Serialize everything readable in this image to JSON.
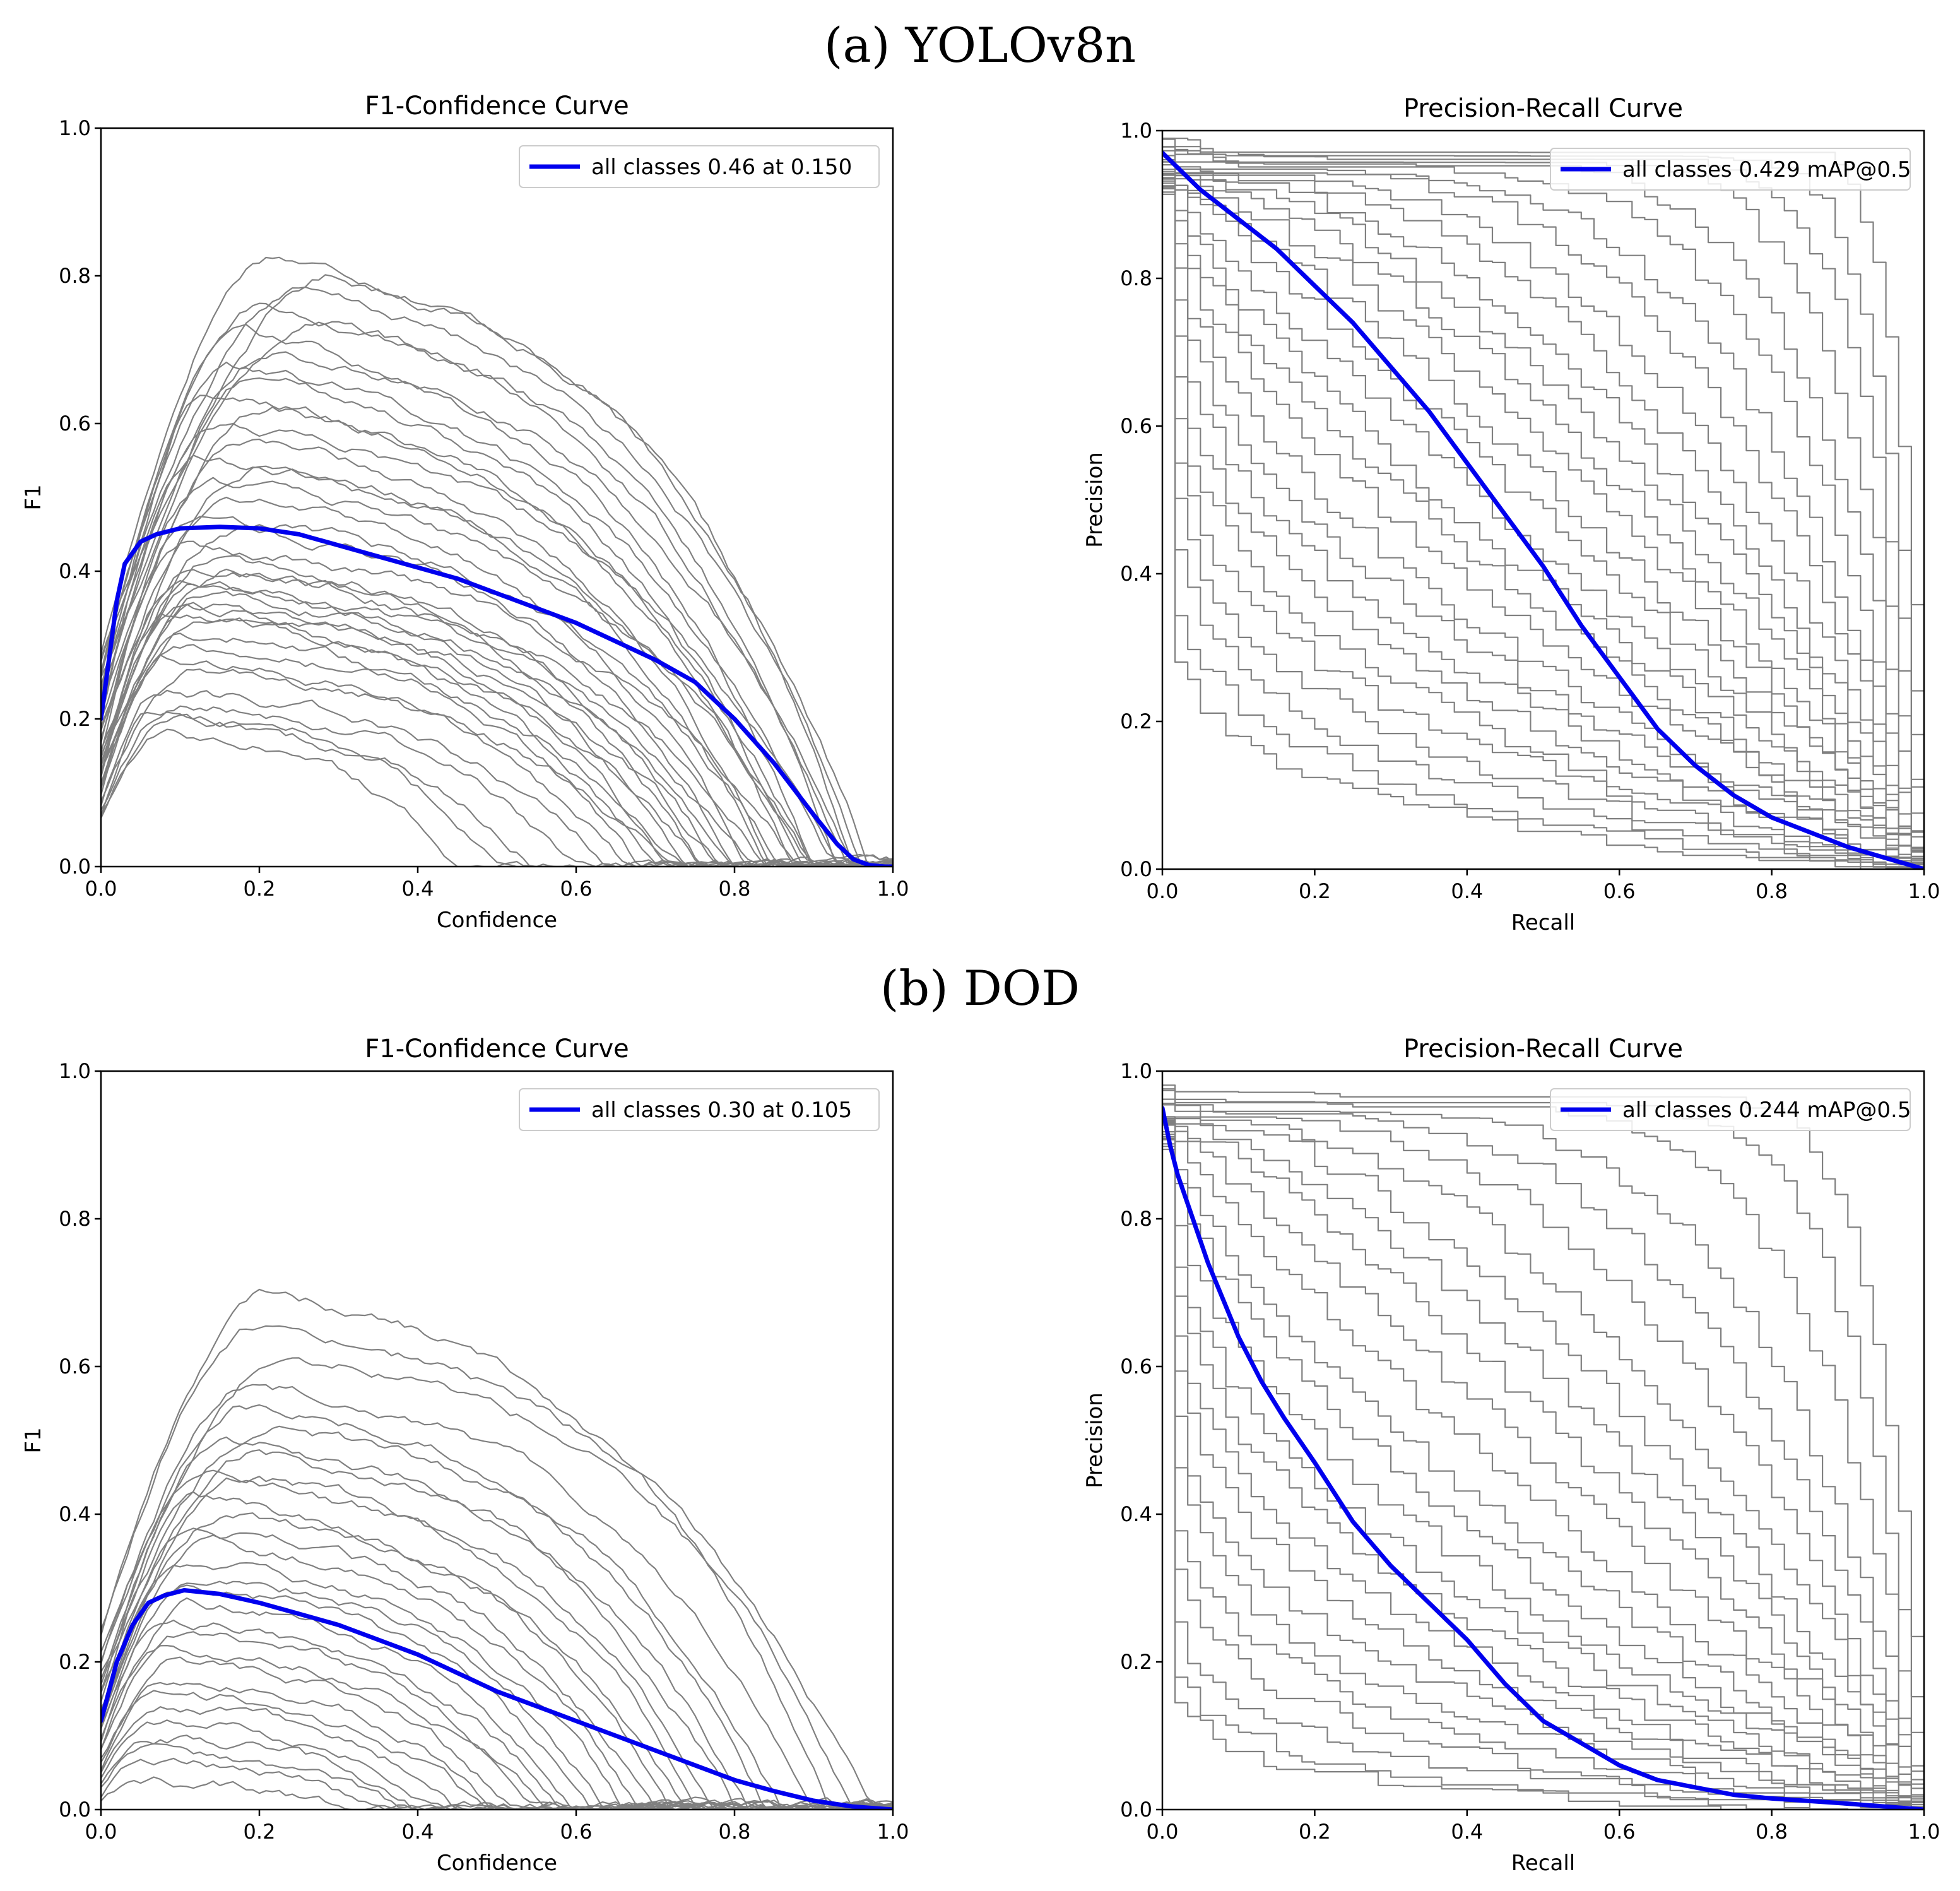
{
  "panels": [
    {
      "label": "(a) YOLOv8n"
    },
    {
      "label": "(b) DOD"
    }
  ],
  "chart_data": [
    {
      "type": "line",
      "panel": "(a) YOLOv8n",
      "title": "F1-Confidence Curve",
      "xlabel": "Confidence",
      "ylabel": "F1",
      "xlim": [
        0,
        1
      ],
      "ylim": [
        0,
        1
      ],
      "xticks": [
        "0.0",
        "0.2",
        "0.4",
        "0.6",
        "0.8",
        "1.0"
      ],
      "yticks": [
        "0.0",
        "0.2",
        "0.4",
        "0.6",
        "0.8",
        "1.0"
      ],
      "legend": {
        "label": "all classes 0.46 at 0.150",
        "color": "#0000ee",
        "position": "top-right"
      },
      "series": [
        {
          "name": "all classes",
          "color": "#0000ee",
          "x": [
            0,
            0.01,
            0.02,
            0.03,
            0.05,
            0.07,
            0.1,
            0.15,
            0.2,
            0.25,
            0.3,
            0.35,
            0.4,
            0.45,
            0.5,
            0.55,
            0.6,
            0.65,
            0.7,
            0.75,
            0.8,
            0.85,
            0.9,
            0.93,
            0.95,
            0.97,
            0.99,
            1.0
          ],
          "y": [
            0.2,
            0.28,
            0.36,
            0.41,
            0.44,
            0.45,
            0.458,
            0.46,
            0.458,
            0.45,
            0.435,
            0.42,
            0.405,
            0.39,
            0.37,
            0.35,
            0.33,
            0.305,
            0.28,
            0.25,
            0.2,
            0.14,
            0.07,
            0.03,
            0.01,
            0.002,
            0.0,
            0.0
          ]
        }
      ],
      "class_curves": [
        {
          "peak": 0.83,
          "peak_at": 0.22,
          "drop": 0.97
        },
        {
          "peak": 0.8,
          "peak_at": 0.3,
          "drop": 0.95
        },
        {
          "peak": 0.78,
          "peak_at": 0.25,
          "drop": 0.96
        },
        {
          "peak": 0.76,
          "peak_at": 0.2,
          "drop": 0.94
        },
        {
          "peak": 0.74,
          "peak_at": 0.28,
          "drop": 0.93
        },
        {
          "peak": 0.72,
          "peak_at": 0.18,
          "drop": 0.95
        },
        {
          "peak": 0.7,
          "peak_at": 0.22,
          "drop": 0.9
        },
        {
          "peak": 0.68,
          "peak_at": 0.16,
          "drop": 0.92
        },
        {
          "peak": 0.66,
          "peak_at": 0.2,
          "drop": 0.88
        },
        {
          "peak": 0.64,
          "peak_at": 0.14,
          "drop": 0.9
        },
        {
          "peak": 0.62,
          "peak_at": 0.22,
          "drop": 0.87
        },
        {
          "peak": 0.6,
          "peak_at": 0.15,
          "drop": 0.93
        },
        {
          "peak": 0.58,
          "peak_at": 0.18,
          "drop": 0.85
        },
        {
          "peak": 0.56,
          "peak_at": 0.12,
          "drop": 0.89
        },
        {
          "peak": 0.54,
          "peak_at": 0.2,
          "drop": 0.84
        },
        {
          "peak": 0.52,
          "peak_at": 0.14,
          "drop": 0.9
        },
        {
          "peak": 0.5,
          "peak_at": 0.16,
          "drop": 0.82
        },
        {
          "peak": 0.48,
          "peak_at": 0.12,
          "drop": 0.86
        },
        {
          "peak": 0.46,
          "peak_at": 0.18,
          "drop": 0.8
        },
        {
          "peak": 0.44,
          "peak_at": 0.1,
          "drop": 0.88
        },
        {
          "peak": 0.42,
          "peak_at": 0.14,
          "drop": 0.78
        },
        {
          "peak": 0.41,
          "peak_at": 0.12,
          "drop": 0.84
        },
        {
          "peak": 0.4,
          "peak_at": 0.16,
          "drop": 0.76
        },
        {
          "peak": 0.39,
          "peak_at": 0.1,
          "drop": 0.82
        },
        {
          "peak": 0.38,
          "peak_at": 0.12,
          "drop": 0.74
        },
        {
          "peak": 0.37,
          "peak_at": 0.14,
          "drop": 0.8
        },
        {
          "peak": 0.36,
          "peak_at": 0.1,
          "drop": 0.72
        },
        {
          "peak": 0.35,
          "peak_at": 0.12,
          "drop": 0.78
        },
        {
          "peak": 0.34,
          "peak_at": 0.08,
          "drop": 0.7
        },
        {
          "peak": 0.33,
          "peak_at": 0.12,
          "drop": 0.76
        },
        {
          "peak": 0.32,
          "peak_at": 0.1,
          "drop": 0.68
        },
        {
          "peak": 0.3,
          "peak_at": 0.1,
          "drop": 0.74
        },
        {
          "peak": 0.28,
          "peak_at": 0.08,
          "drop": 0.66
        },
        {
          "peak": 0.26,
          "peak_at": 0.12,
          "drop": 0.72
        },
        {
          "peak": 0.24,
          "peak_at": 0.08,
          "drop": 0.64
        },
        {
          "peak": 0.22,
          "peak_at": 0.1,
          "drop": 0.6
        },
        {
          "peak": 0.21,
          "peak_at": 0.06,
          "drop": 0.55
        },
        {
          "peak": 0.2,
          "peak_at": 0.1,
          "drop": 0.5
        },
        {
          "peak": 0.18,
          "peak_at": 0.08,
          "drop": 0.45
        }
      ]
    },
    {
      "type": "line",
      "panel": "(a) YOLOv8n",
      "title": "Precision-Recall Curve",
      "xlabel": "Recall",
      "ylabel": "Precision",
      "xlim": [
        0,
        1
      ],
      "ylim": [
        0,
        1
      ],
      "xticks": [
        "0.0",
        "0.2",
        "0.4",
        "0.6",
        "0.8",
        "1.0"
      ],
      "yticks": [
        "0.0",
        "0.2",
        "0.4",
        "0.6",
        "0.8",
        "1.0"
      ],
      "legend": {
        "label": "all classes 0.429 mAP@0.5",
        "color": "#0000ee",
        "position": "top-right"
      },
      "series": [
        {
          "name": "all classes",
          "color": "#0000ee",
          "x": [
            0,
            0.02,
            0.05,
            0.1,
            0.15,
            0.2,
            0.25,
            0.3,
            0.35,
            0.4,
            0.45,
            0.5,
            0.55,
            0.6,
            0.65,
            0.7,
            0.75,
            0.8,
            0.85,
            0.9,
            0.95,
            1.0
          ],
          "y": [
            0.97,
            0.95,
            0.92,
            0.88,
            0.84,
            0.79,
            0.74,
            0.68,
            0.62,
            0.55,
            0.48,
            0.41,
            0.33,
            0.26,
            0.19,
            0.14,
            0.1,
            0.07,
            0.05,
            0.03,
            0.015,
            0.0
          ]
        }
      ],
      "class_curves": [
        {
          "ap": 0.85,
          "shape": 5
        },
        {
          "ap": 0.8,
          "shape": 4.5
        },
        {
          "ap": 0.76,
          "shape": 4
        },
        {
          "ap": 0.72,
          "shape": 3.6
        },
        {
          "ap": 0.68,
          "shape": 3.2
        },
        {
          "ap": 0.64,
          "shape": 3
        },
        {
          "ap": 0.6,
          "shape": 2.8
        },
        {
          "ap": 0.57,
          "shape": 2.6
        },
        {
          "ap": 0.54,
          "shape": 2.4
        },
        {
          "ap": 0.51,
          "shape": 2.3
        },
        {
          "ap": 0.48,
          "shape": 2.2
        },
        {
          "ap": 0.46,
          "shape": 2.1
        },
        {
          "ap": 0.44,
          "shape": 2
        },
        {
          "ap": 0.42,
          "shape": 1.9
        },
        {
          "ap": 0.4,
          "shape": 1.8
        },
        {
          "ap": 0.38,
          "shape": 1.7
        },
        {
          "ap": 0.36,
          "shape": 1.6
        },
        {
          "ap": 0.34,
          "shape": 1.5
        },
        {
          "ap": 0.32,
          "shape": 1.45
        },
        {
          "ap": 0.3,
          "shape": 1.4
        },
        {
          "ap": 0.28,
          "shape": 1.3
        },
        {
          "ap": 0.26,
          "shape": 1.25
        },
        {
          "ap": 0.24,
          "shape": 1.2
        },
        {
          "ap": 0.22,
          "shape": 1.15
        },
        {
          "ap": 0.2,
          "shape": 1.1
        },
        {
          "ap": 0.18,
          "shape": 1.05
        },
        {
          "ap": 0.16,
          "shape": 1
        },
        {
          "ap": 0.14,
          "shape": 0.95
        },
        {
          "ap": 0.12,
          "shape": 0.9
        },
        {
          "ap": 0.1,
          "shape": 0.85
        }
      ]
    },
    {
      "type": "line",
      "panel": "(b) DOD",
      "title": "F1-Confidence Curve",
      "xlabel": "Confidence",
      "ylabel": "F1",
      "xlim": [
        0,
        1
      ],
      "ylim": [
        0,
        1
      ],
      "xticks": [
        "0.0",
        "0.2",
        "0.4",
        "0.6",
        "0.8",
        "1.0"
      ],
      "yticks": [
        "0.0",
        "0.2",
        "0.4",
        "0.6",
        "0.8",
        "1.0"
      ],
      "legend": {
        "label": "all classes 0.30 at 0.105",
        "color": "#0000ee",
        "position": "top-right"
      },
      "series": [
        {
          "name": "all classes",
          "color": "#0000ee",
          "x": [
            0,
            0.01,
            0.02,
            0.04,
            0.06,
            0.08,
            0.105,
            0.15,
            0.2,
            0.25,
            0.3,
            0.35,
            0.4,
            0.45,
            0.5,
            0.55,
            0.6,
            0.65,
            0.7,
            0.75,
            0.8,
            0.85,
            0.9,
            0.95,
            1.0
          ],
          "y": [
            0.12,
            0.16,
            0.2,
            0.25,
            0.28,
            0.29,
            0.297,
            0.292,
            0.28,
            0.265,
            0.25,
            0.23,
            0.21,
            0.185,
            0.16,
            0.14,
            0.12,
            0.1,
            0.08,
            0.06,
            0.04,
            0.025,
            0.012,
            0.004,
            0.0
          ]
        }
      ],
      "class_curves": [
        {
          "peak": 0.7,
          "peak_at": 0.22,
          "drop": 0.92
        },
        {
          "peak": 0.66,
          "peak_at": 0.2,
          "drop": 0.97
        },
        {
          "peak": 0.62,
          "peak_at": 0.25,
          "drop": 0.95
        },
        {
          "peak": 0.58,
          "peak_at": 0.2,
          "drop": 0.9
        },
        {
          "peak": 0.55,
          "peak_at": 0.18,
          "drop": 0.86
        },
        {
          "peak": 0.52,
          "peak_at": 0.22,
          "drop": 0.84
        },
        {
          "peak": 0.5,
          "peak_at": 0.16,
          "drop": 0.82
        },
        {
          "peak": 0.48,
          "peak_at": 0.2,
          "drop": 0.8
        },
        {
          "peak": 0.46,
          "peak_at": 0.14,
          "drop": 0.78
        },
        {
          "peak": 0.44,
          "peak_at": 0.18,
          "drop": 0.76
        },
        {
          "peak": 0.42,
          "peak_at": 0.12,
          "drop": 0.74
        },
        {
          "peak": 0.4,
          "peak_at": 0.16,
          "drop": 0.72
        },
        {
          "peak": 0.38,
          "peak_at": 0.12,
          "drop": 0.7
        },
        {
          "peak": 0.36,
          "peak_at": 0.14,
          "drop": 0.68
        },
        {
          "peak": 0.34,
          "peak_at": 0.1,
          "drop": 0.66
        },
        {
          "peak": 0.32,
          "peak_at": 0.12,
          "drop": 0.64
        },
        {
          "peak": 0.3,
          "peak_at": 0.1,
          "drop": 0.62
        },
        {
          "peak": 0.28,
          "peak_at": 0.12,
          "drop": 0.6
        },
        {
          "peak": 0.26,
          "peak_at": 0.08,
          "drop": 0.58
        },
        {
          "peak": 0.24,
          "peak_at": 0.1,
          "drop": 0.56
        },
        {
          "peak": 0.22,
          "peak_at": 0.08,
          "drop": 0.54
        },
        {
          "peak": 0.2,
          "peak_at": 0.1,
          "drop": 0.52
        },
        {
          "peak": 0.18,
          "peak_at": 0.08,
          "drop": 0.5
        },
        {
          "peak": 0.16,
          "peak_at": 0.06,
          "drop": 0.48
        },
        {
          "peak": 0.14,
          "peak_at": 0.08,
          "drop": 0.45
        },
        {
          "peak": 0.12,
          "peak_at": 0.06,
          "drop": 0.42
        },
        {
          "peak": 0.1,
          "peak_at": 0.06,
          "drop": 0.4
        },
        {
          "peak": 0.08,
          "peak_at": 0.05,
          "drop": 0.38
        },
        {
          "peak": 0.06,
          "peak_at": 0.05,
          "drop": 0.35
        },
        {
          "peak": 0.04,
          "peak_at": 0.04,
          "drop": 0.3
        }
      ]
    },
    {
      "type": "line",
      "panel": "(b) DOD",
      "title": "Precision-Recall Curve",
      "xlabel": "Recall",
      "ylabel": "Precision",
      "xlim": [
        0,
        1
      ],
      "ylim": [
        0,
        1
      ],
      "xticks": [
        "0.0",
        "0.2",
        "0.4",
        "0.6",
        "0.8",
        "1.0"
      ],
      "yticks": [
        "0.0",
        "0.2",
        "0.4",
        "0.6",
        "0.8",
        "1.0"
      ],
      "legend": {
        "label": "all classes 0.244 mAP@0.5",
        "color": "#0000ee",
        "position": "top-right"
      },
      "series": [
        {
          "name": "all classes",
          "color": "#0000ee",
          "x": [
            0,
            0.01,
            0.02,
            0.04,
            0.06,
            0.08,
            0.1,
            0.13,
            0.16,
            0.2,
            0.25,
            0.3,
            0.35,
            0.4,
            0.45,
            0.5,
            0.55,
            0.6,
            0.65,
            0.7,
            0.75,
            0.8,
            0.9,
            1.0
          ],
          "y": [
            0.95,
            0.9,
            0.86,
            0.8,
            0.74,
            0.69,
            0.64,
            0.58,
            0.53,
            0.47,
            0.39,
            0.33,
            0.28,
            0.23,
            0.17,
            0.12,
            0.09,
            0.06,
            0.04,
            0.03,
            0.02,
            0.015,
            0.008,
            0.0
          ]
        }
      ],
      "class_curves": [
        {
          "ap": 0.78,
          "shape": 4.5
        },
        {
          "ap": 0.72,
          "shape": 4
        },
        {
          "ap": 0.66,
          "shape": 3.5
        },
        {
          "ap": 0.6,
          "shape": 3
        },
        {
          "ap": 0.56,
          "shape": 2.7
        },
        {
          "ap": 0.52,
          "shape": 2.5
        },
        {
          "ap": 0.48,
          "shape": 2.3
        },
        {
          "ap": 0.45,
          "shape": 2.1
        },
        {
          "ap": 0.42,
          "shape": 2
        },
        {
          "ap": 0.39,
          "shape": 1.9
        },
        {
          "ap": 0.36,
          "shape": 1.8
        },
        {
          "ap": 0.33,
          "shape": 1.7
        },
        {
          "ap": 0.3,
          "shape": 1.6
        },
        {
          "ap": 0.28,
          "shape": 1.5
        },
        {
          "ap": 0.26,
          "shape": 1.4
        },
        {
          "ap": 0.24,
          "shape": 1.3
        },
        {
          "ap": 0.22,
          "shape": 1.25
        },
        {
          "ap": 0.2,
          "shape": 1.2
        },
        {
          "ap": 0.18,
          "shape": 1.15
        },
        {
          "ap": 0.16,
          "shape": 1.1
        },
        {
          "ap": 0.14,
          "shape": 1.05
        },
        {
          "ap": 0.12,
          "shape": 1
        },
        {
          "ap": 0.1,
          "shape": 0.95
        },
        {
          "ap": 0.08,
          "shape": 0.9
        },
        {
          "ap": 0.06,
          "shape": 0.85
        },
        {
          "ap": 0.05,
          "shape": 0.8
        }
      ]
    }
  ]
}
